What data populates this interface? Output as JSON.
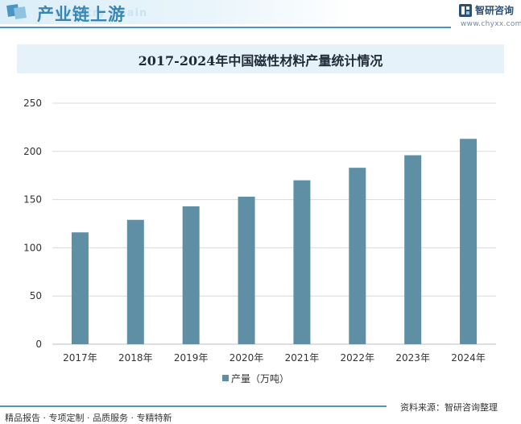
{
  "header": {
    "title": "产业链上游",
    "subtitle": "Industry Chain",
    "brand_name": "智研咨询",
    "brand_url": "www.chyxx.com"
  },
  "colors": {
    "bar": "#5f8fa5",
    "accent": "#4b93c3",
    "grid": "#d9d9d9"
  },
  "chart_data": {
    "type": "bar",
    "title": "2017-2024年中国磁性材料产量统计情况",
    "categories": [
      "2017年",
      "2018年",
      "2019年",
      "2020年",
      "2021年",
      "2022年",
      "2023年",
      "2024年"
    ],
    "series": [
      {
        "name": "产量（万吨）",
        "values": [
          116,
          129,
          143,
          153,
          170,
          183,
          196,
          213
        ]
      }
    ],
    "ylim": [
      0,
      250
    ],
    "yticks": [
      0,
      50,
      100,
      150,
      200,
      250
    ],
    "xlabel": "",
    "ylabel": "",
    "legend_position": "bottom",
    "grid": true
  },
  "footer": {
    "tags": "精品报告 · 专项定制 · 品质服务 · 专精特新",
    "source": "资料来源：智研咨询整理"
  }
}
